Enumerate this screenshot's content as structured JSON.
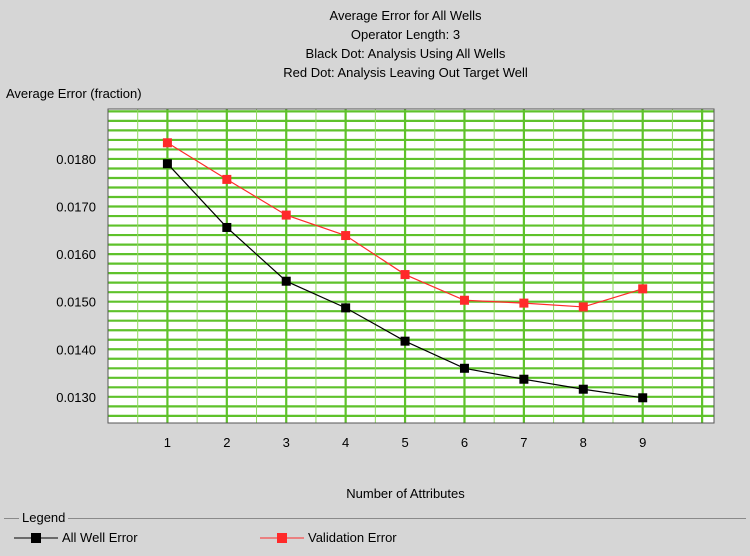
{
  "chart_data": {
    "type": "line",
    "title_lines": [
      "Average Error for All Wells",
      "Operator Length: 3",
      "Black Dot: Analysis Using All Wells",
      "Red Dot: Analysis Leaving Out Target Well"
    ],
    "xlabel": "Number of Attributes",
    "ylabel": "Average Error (fraction)",
    "x": [
      1,
      2,
      3,
      4,
      5,
      6,
      7,
      8,
      9
    ],
    "xlim": [
      0,
      10.2
    ],
    "ylim": [
      0.01245,
      0.01905
    ],
    "yticks": [
      0.013,
      0.014,
      0.015,
      0.016,
      0.017,
      0.018
    ],
    "ytick_labels": [
      "0.0130",
      "0.0140",
      "0.0150",
      "0.0160",
      "0.0170",
      "0.0180"
    ],
    "xtick_labels": [
      "1",
      "2",
      "3",
      "4",
      "5",
      "6",
      "7",
      "8",
      "9"
    ],
    "grid": true,
    "series": [
      {
        "name": "All Well Error",
        "color": "#000000",
        "values": [
          0.0179,
          0.01656,
          0.01543,
          0.01487,
          0.01417,
          0.0136,
          0.01337,
          0.01316,
          0.01298
        ]
      },
      {
        "name": "Validation Error",
        "color": "#ff2a2a",
        "values": [
          0.01834,
          0.01757,
          0.01682,
          0.01639,
          0.01557,
          0.01503,
          0.01497,
          0.01489,
          0.01527
        ]
      }
    ],
    "legend": {
      "title": "Legend",
      "placement": "bottom"
    }
  }
}
